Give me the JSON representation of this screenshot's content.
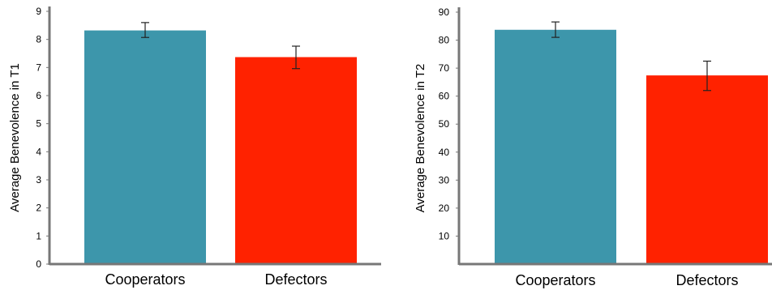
{
  "chart_data": [
    {
      "type": "bar",
      "categories": [
        "Cooperators",
        "Defectors"
      ],
      "values": [
        8.32,
        7.37
      ],
      "errors": [
        [
          8.07,
          8.6
        ],
        [
          6.96,
          7.76
        ]
      ],
      "colors": [
        "#3d96ab",
        "#ff2200"
      ],
      "ylabel": "Average Benevolence in T1",
      "ylim": [
        0,
        9
      ],
      "yticks": [
        "0",
        "1",
        "2",
        "3",
        "4",
        "5",
        "6",
        "7",
        "8",
        "9"
      ]
    },
    {
      "type": "bar",
      "categories": [
        "Cooperators",
        "Defectors"
      ],
      "values": [
        83.7,
        67.4
      ],
      "errors": [
        [
          81,
          86.5
        ],
        [
          62,
          72.5
        ]
      ],
      "colors": [
        "#3d96ab",
        "#ff2200"
      ],
      "ylabel": "Average Benevolence in T2",
      "ylim": [
        0,
        90
      ],
      "yticks": [
        "10",
        "20",
        "30",
        "40",
        "50",
        "60",
        "70",
        "80",
        "90"
      ]
    }
  ]
}
